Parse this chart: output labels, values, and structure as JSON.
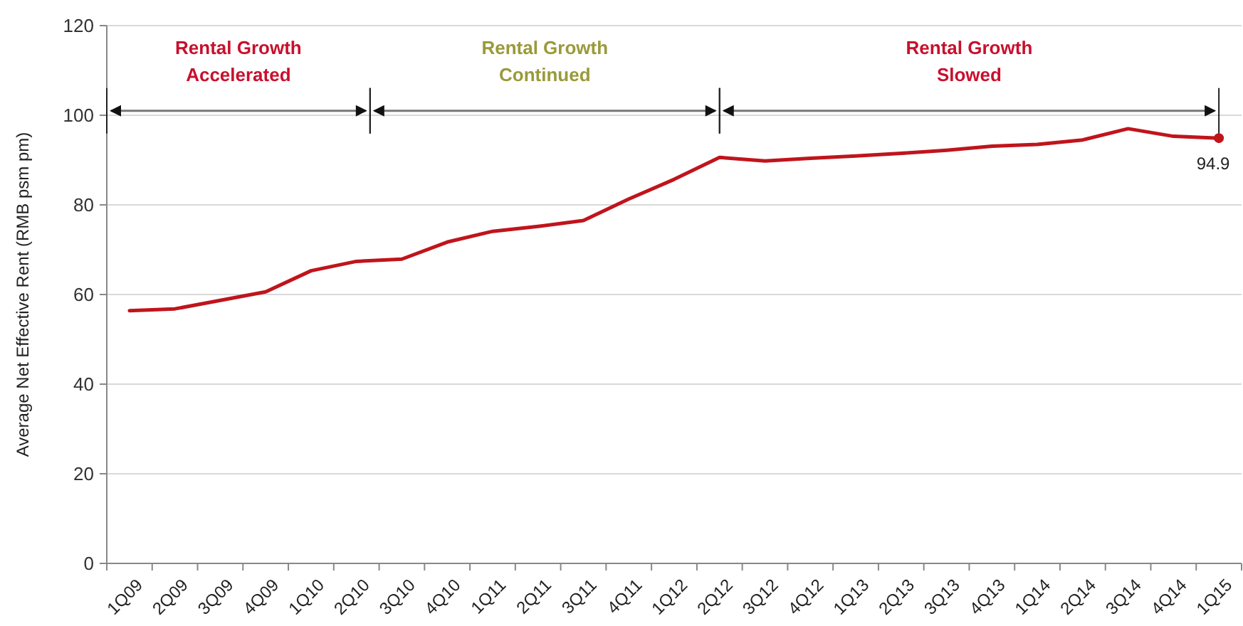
{
  "chart_data": {
    "type": "line",
    "ylabel": "Average Net Effective Rent (RMB psm pm)",
    "categories": [
      "1Q09",
      "2Q09",
      "3Q09",
      "4Q09",
      "1Q10",
      "2Q10",
      "3Q10",
      "4Q10",
      "1Q11",
      "2Q11",
      "3Q11",
      "4Q11",
      "1Q12",
      "2Q12",
      "3Q12",
      "4Q12",
      "1Q13",
      "2Q13",
      "3Q13",
      "4Q13",
      "1Q14",
      "2Q14",
      "3Q14",
      "4Q14",
      "1Q15"
    ],
    "series": [
      {
        "color": "#c0141c",
        "values": [
          56.4,
          56.8,
          58.7,
          60.6,
          65.3,
          67.4,
          67.9,
          71.7,
          74.1,
          75.2,
          76.5,
          81.3,
          85.7,
          90.6,
          89.8,
          90.4,
          90.9,
          91.5,
          92.2,
          93.1,
          93.5,
          94.5,
          97.0,
          95.3,
          94.9
        ],
        "value_labels": [
          null,
          null,
          null,
          null,
          null,
          null,
          null,
          null,
          null,
          null,
          null,
          null,
          null,
          null,
          null,
          null,
          null,
          null,
          null,
          null,
          null,
          null,
          null,
          null,
          "94.9"
        ]
      }
    ],
    "ylim": [
      0,
      120
    ],
    "yticks": [
      0,
      20,
      40,
      60,
      80,
      100,
      120
    ],
    "grid": "y",
    "annotations": [
      "Rental Growth\nAccelerated",
      "Rental Growth\nContinued",
      "Rental Growth\nSlowed"
    ]
  }
}
